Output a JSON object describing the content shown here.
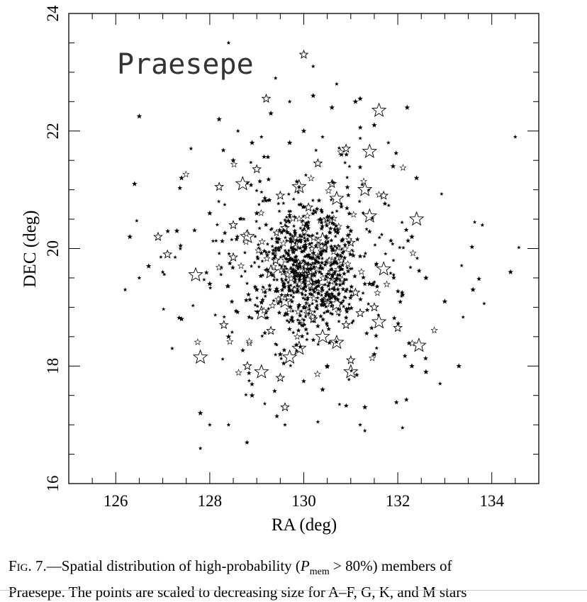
{
  "chart_data": {
    "type": "scatter",
    "title": "Praesepe",
    "xlabel": "RA (deg)",
    "ylabel": "DEC (deg)",
    "xlim": [
      125,
      135
    ],
    "ylim": [
      16,
      24
    ],
    "xticks": [
      126,
      128,
      130,
      132,
      134
    ],
    "yticks": [
      16,
      18,
      20,
      22,
      24
    ],
    "grid": false,
    "marker": "open star, size decreasing from A-F to M stars",
    "series": [
      {
        "name": "A-F",
        "points": [
          [
            131.6,
            22.35
          ],
          [
            131.4,
            21.65
          ],
          [
            128.7,
            21.1
          ],
          [
            129.9,
            21.05
          ],
          [
            130.7,
            20.85
          ],
          [
            131.3,
            21.0
          ],
          [
            131.4,
            20.55
          ],
          [
            132.4,
            20.5
          ],
          [
            128.8,
            20.2
          ],
          [
            130.4,
            20.15
          ],
          [
            129.8,
            20.1
          ],
          [
            129.3,
            19.6
          ],
          [
            130.0,
            19.55
          ],
          [
            130.3,
            19.35
          ],
          [
            131.7,
            19.65
          ],
          [
            127.7,
            19.55
          ],
          [
            129.6,
            19.1
          ],
          [
            130.7,
            19.05
          ],
          [
            129.1,
            18.9
          ],
          [
            131.6,
            18.75
          ],
          [
            130.7,
            18.4
          ],
          [
            130.4,
            18.5
          ],
          [
            129.9,
            18.3
          ],
          [
            129.7,
            18.15
          ],
          [
            127.8,
            18.15
          ],
          [
            129.1,
            17.9
          ],
          [
            131.0,
            17.9
          ],
          [
            132.45,
            18.35
          ]
        ]
      },
      {
        "name": "G",
        "points": [
          [
            126.9,
            20.2
          ],
          [
            127.1,
            19.9
          ],
          [
            129.2,
            22.55
          ],
          [
            130.0,
            23.3
          ],
          [
            128.2,
            21.05
          ],
          [
            129.0,
            21.35
          ],
          [
            130.3,
            21.45
          ],
          [
            130.9,
            21.7
          ],
          [
            129.6,
            20.35
          ],
          [
            130.1,
            20.7
          ],
          [
            130.5,
            20.5
          ],
          [
            131.0,
            20.1
          ],
          [
            128.5,
            19.85
          ],
          [
            129.4,
            19.8
          ],
          [
            130.1,
            19.7
          ],
          [
            130.6,
            19.6
          ],
          [
            129.9,
            19.3
          ],
          [
            130.5,
            19.15
          ],
          [
            131.1,
            19.25
          ],
          [
            128.3,
            18.7
          ],
          [
            129.3,
            18.6
          ],
          [
            130.2,
            18.8
          ],
          [
            130.9,
            18.7
          ],
          [
            131.5,
            19.0
          ],
          [
            132.0,
            18.65
          ],
          [
            128.8,
            18.0
          ],
          [
            129.6,
            17.3
          ],
          [
            129.5,
            17.8
          ],
          [
            131.0,
            18.1
          ],
          [
            131.2,
            18.9
          ],
          [
            128.5,
            20.4
          ],
          [
            131.7,
            20.9
          ],
          [
            130.6,
            21.1
          ],
          [
            129.5,
            20.9
          ]
        ]
      },
      {
        "name": "K",
        "points": [
          [
            126.5,
            22.25
          ],
          [
            128.2,
            22.2
          ],
          [
            129.3,
            22.3
          ],
          [
            130.2,
            22.6
          ],
          [
            131.1,
            22.5
          ],
          [
            132.2,
            22.4
          ],
          [
            130.0,
            22.0
          ],
          [
            131.5,
            22.1
          ],
          [
            126.4,
            21.1
          ],
          [
            127.4,
            21.2
          ],
          [
            128.5,
            21.5
          ],
          [
            130.8,
            21.6
          ],
          [
            126.3,
            20.2
          ],
          [
            127.3,
            20.3
          ],
          [
            128.0,
            20.6
          ],
          [
            129.0,
            20.6
          ],
          [
            130.0,
            20.3
          ],
          [
            131.0,
            20.3
          ],
          [
            132.3,
            20.2
          ],
          [
            126.7,
            19.7
          ],
          [
            128.0,
            19.4
          ],
          [
            129.0,
            19.3
          ],
          [
            130.0,
            19.0
          ],
          [
            131.4,
            19.4
          ],
          [
            132.6,
            19.5
          ],
          [
            127.4,
            18.8
          ],
          [
            128.4,
            18.5
          ],
          [
            129.5,
            18.2
          ],
          [
            130.5,
            18.0
          ],
          [
            131.5,
            18.2
          ],
          [
            132.3,
            18.0
          ],
          [
            127.8,
            17.2
          ],
          [
            128.9,
            17.5
          ],
          [
            130.4,
            17.6
          ],
          [
            131.3,
            17.3
          ],
          [
            132.6,
            17.9
          ],
          [
            133.3,
            18.0
          ],
          [
            133.0,
            19.1
          ],
          [
            132.4,
            21.2
          ],
          [
            128.9,
            21.8
          ],
          [
            129.7,
            21.8
          ],
          [
            131.9,
            21.4
          ],
          [
            131.2,
            22.55
          ],
          [
            130.6,
            22.4
          ],
          [
            133.6,
            19.3
          ],
          [
            134.4,
            19.6
          ]
        ]
      },
      {
        "name": "M",
        "points": [
          [
            128.4,
            23.5
          ],
          [
            130.2,
            23.1
          ],
          [
            129.4,
            22.9
          ],
          [
            129.7,
            22.5
          ],
          [
            130.7,
            22.8
          ],
          [
            134.5,
            21.9
          ],
          [
            126.2,
            19.3
          ],
          [
            127.0,
            19.6
          ],
          [
            128.0,
            17.0
          ],
          [
            128.4,
            17.0
          ],
          [
            129.6,
            17.0
          ],
          [
            130.3,
            17.05
          ],
          [
            131.2,
            17.0
          ],
          [
            131.3,
            16.9
          ],
          [
            132.1,
            16.95
          ],
          [
            127.8,
            16.6
          ],
          [
            133.8,
            20.4
          ],
          [
            126.5,
            19.5
          ],
          [
            127.6,
            21.7
          ],
          [
            131.8,
            21.8
          ],
          [
            128.6,
            22.0
          ],
          [
            129.1,
            21.9
          ],
          [
            130.4,
            21.9
          ],
          [
            132.9,
            17.7
          ],
          [
            127.2,
            18.3
          ]
        ]
      }
    ]
  },
  "caption": {
    "fig_label": "Fig. 7.",
    "text_1": "—Spatial distribution of high-probability (",
    "p_symbol": "P",
    "p_sub": "mem",
    "text_2": " > 80%) members of",
    "line_2": "Praesepe. The points are scaled to decreasing size for A–F, G, K, and M stars"
  }
}
